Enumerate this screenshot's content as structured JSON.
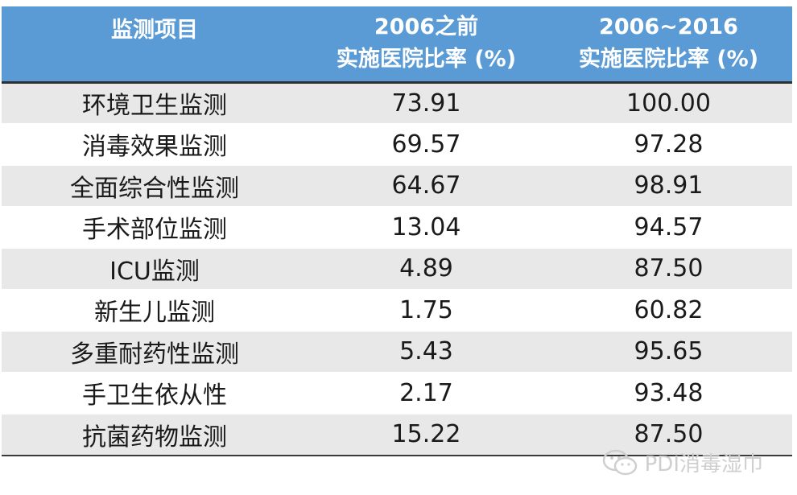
{
  "table": {
    "headers": [
      {
        "lines": [
          "监测项目"
        ]
      },
      {
        "lines": [
          "2006之前",
          "实施医院比率 (%)"
        ]
      },
      {
        "lines": [
          "2006~2016",
          "实施医院比率 (%)"
        ]
      }
    ],
    "rows": [
      {
        "item": "环境卫生监测",
        "before_2006": "73.91",
        "y2006_2016": "100.00"
      },
      {
        "item": "消毒效果监测",
        "before_2006": "69.57",
        "y2006_2016": "97.28"
      },
      {
        "item": "全面综合性监测",
        "before_2006": "64.67",
        "y2006_2016": "98.91"
      },
      {
        "item": "手术部位监测",
        "before_2006": "13.04",
        "y2006_2016": "94.57"
      },
      {
        "item": "ICU监测",
        "before_2006": "4.89",
        "y2006_2016": "87.50"
      },
      {
        "item": "新生儿监测",
        "before_2006": "1.75",
        "y2006_2016": "60.82"
      },
      {
        "item": "多重耐药性监测",
        "before_2006": "5.43",
        "y2006_2016": "95.65"
      },
      {
        "item": "手卫生依从性",
        "before_2006": "2.17",
        "y2006_2016": "93.48"
      },
      {
        "item": "抗菌药物监测",
        "before_2006": "15.22",
        "y2006_2016": "87.50"
      }
    ]
  },
  "watermark": {
    "text": "PDI消毒湿巾",
    "icon": "wechat-icon"
  },
  "colors": {
    "header_bg": "#5b9bd5",
    "row_alt_bg": "#e8e8e8"
  }
}
